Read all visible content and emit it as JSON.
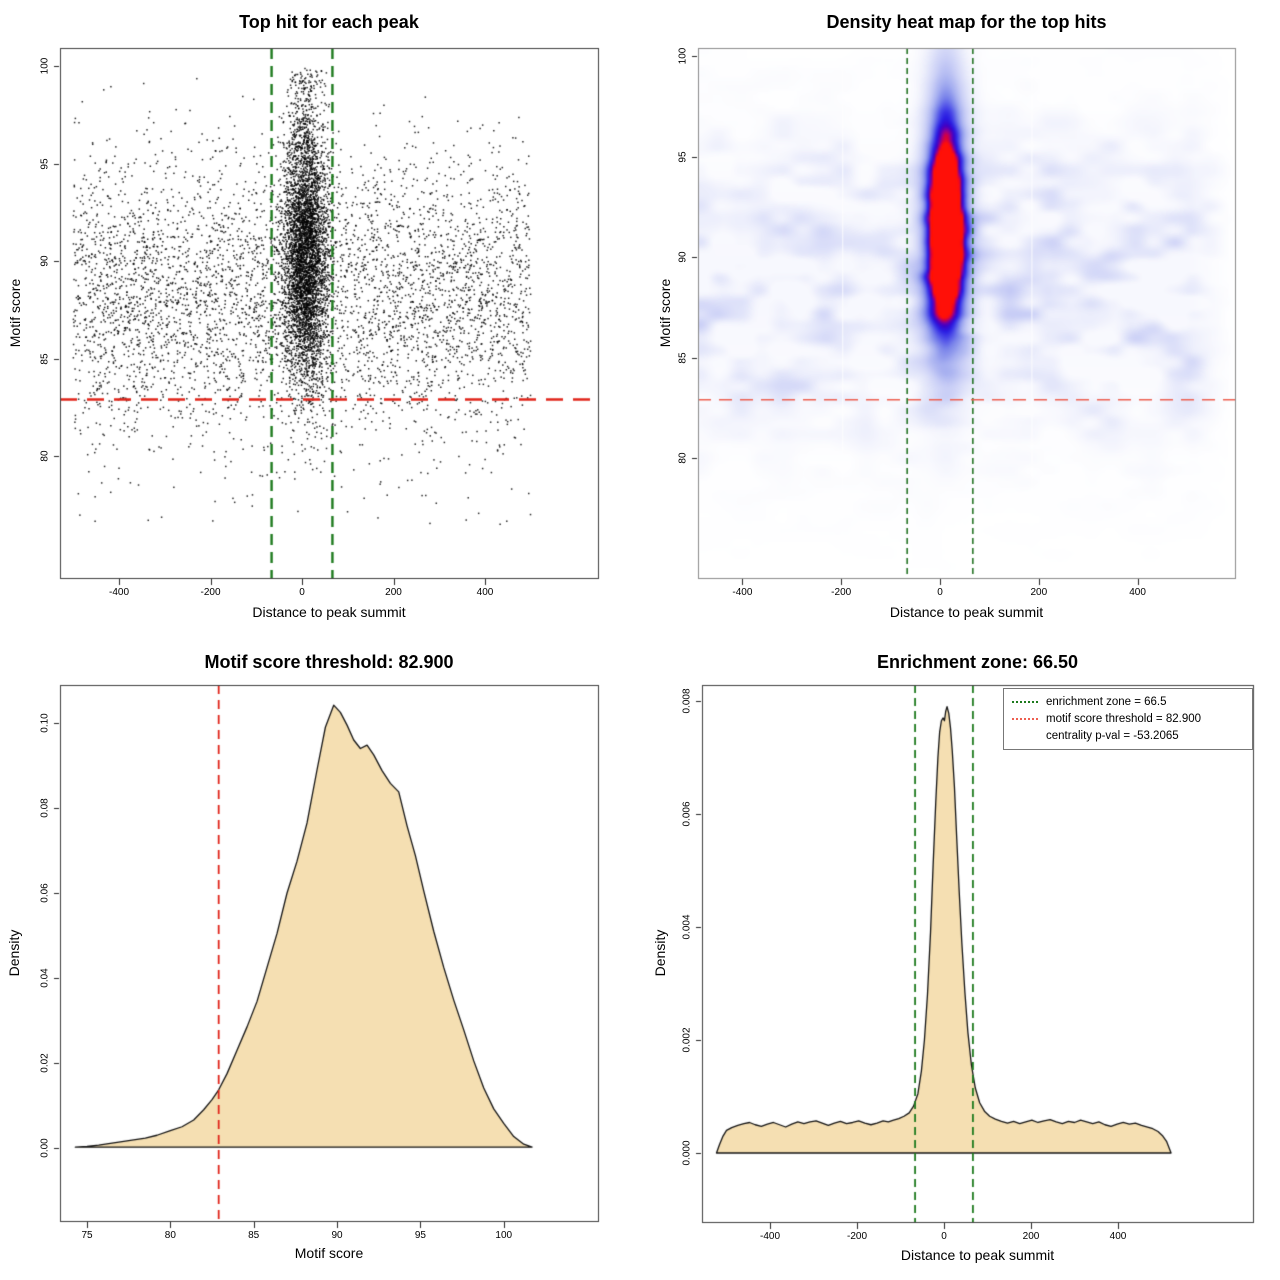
{
  "figure": {
    "background": "#ffffff"
  },
  "colors": {
    "enrichment_zone_green": "#1d7a1d",
    "heatmap_zone_green": "#166b16",
    "threshold_red": "#e0241a",
    "heatmap_threshold_salmon": "#ee5f50",
    "density_fill_wheat": "#f5dfb2",
    "curve_stroke": "#141414",
    "legend_dot_blue": "#1512e6",
    "scatter_point": "#000000",
    "heatmap_low": "#ffffff",
    "heatmap_mid": "#2a1ae2",
    "heatmap_high": "#ff1008"
  },
  "chart_data": [
    {
      "id": "top-hit-scatter",
      "type": "scatter",
      "title": "Top hit for each peak",
      "xlabel": "Distance to peak summit",
      "ylabel": "Motif score",
      "xlim": [
        -530,
        640
      ],
      "ylim": [
        74,
        101
      ],
      "x_tick_labels": [
        "-400",
        "-200",
        "0",
        "200",
        "400"
      ],
      "x_tick_values": [
        -400,
        -200,
        0,
        200,
        400
      ],
      "y_tick_labels": [
        "80",
        "85",
        "90",
        "95",
        "100"
      ],
      "y_tick_values": [
        80,
        85,
        90,
        95,
        100
      ],
      "grid": false,
      "enrichment_zone": [
        -66.5,
        66.5
      ],
      "motif_score_threshold": 82.9,
      "n_points_background": 4600,
      "n_points_cluster": 4300,
      "n_points_cluster_top_tail": 220,
      "n_points_low_tail": 60,
      "background_dist": {
        "x": "uniform(-500,500)",
        "y_mean": 88.3,
        "y_sd": 3.6,
        "y_clip": [
          76.3,
          99.6
        ]
      },
      "cluster_dist": {
        "x_mean": 8,
        "x_sd": 24,
        "x_clip": [
          -69,
          69
        ],
        "y_mean": 90.2,
        "y_sd": 3.35,
        "y_clip": [
          77.2,
          99.9
        ]
      }
    },
    {
      "id": "top-hit-density-heatmap",
      "type": "heatmap",
      "title": "Density heat map for the top hits",
      "xlabel": "Distance to peak summit",
      "ylabel": "Motif score",
      "xlim": [
        -490,
        600
      ],
      "ylim": [
        74,
        100.4
      ],
      "x_tick_labels": [
        "-400",
        "-200",
        "0",
        "200",
        "400"
      ],
      "x_tick_values": [
        -400,
        -200,
        0,
        200,
        400
      ],
      "y_tick_labels": [
        "80",
        "85",
        "90",
        "95",
        "100"
      ],
      "y_tick_values": [
        80,
        85,
        90,
        95,
        100
      ],
      "grid": false,
      "enrichment_zone": [
        -66.5,
        66.5
      ],
      "motif_score_threshold": 82.9,
      "hotspot": {
        "x_center": 12,
        "x_sd": 29,
        "y_center": 91,
        "y_sd": 3.8,
        "amplitude": 1.45,
        "top_tail": {
          "x_sd": 26,
          "y_center": 95.5,
          "y_sd": 4.5,
          "amplitude": 0.3
        }
      },
      "background_band": {
        "y_center": 88.6,
        "y_sd": 4.8,
        "amplitude": 0.36
      },
      "white_stripes_x": [
        -197,
        186
      ],
      "colormap": [
        "#ffffff",
        "#e3e6fa",
        "#a7b0f0",
        "#4a4ae8",
        "#2a1ae2",
        "#8c0096",
        "#ff1008"
      ]
    },
    {
      "id": "motif-score-density",
      "type": "area",
      "title": "Motif score threshold: 82.900",
      "xlabel": "Motif score",
      "ylabel": "Density",
      "xlim": [
        73.4,
        103.1
      ],
      "ylim": [
        -0.017,
        0.109
      ],
      "x_tick_labels": [
        "75",
        "80",
        "85",
        "90",
        "95",
        "100"
      ],
      "x_tick_values": [
        75,
        80,
        85,
        90,
        95,
        100
      ],
      "y_tick_labels": [
        "0.00",
        "0.02",
        "0.04",
        "0.06",
        "0.08",
        "0.10"
      ],
      "y_tick_values": [
        0,
        0.02,
        0.04,
        0.06,
        0.08,
        0.1
      ],
      "grid": false,
      "threshold": 82.9,
      "curve": [
        [
          74.3,
          0.0002
        ],
        [
          75,
          0.0004
        ],
        [
          75.7,
          0.0007
        ],
        [
          76.4,
          0.0011
        ],
        [
          77.1,
          0.0015
        ],
        [
          77.8,
          0.0019
        ],
        [
          78.5,
          0.0023
        ],
        [
          79.2,
          0.003
        ],
        [
          80,
          0.0041
        ],
        [
          80.7,
          0.005
        ],
        [
          81.4,
          0.0066
        ],
        [
          82,
          0.009
        ],
        [
          82.5,
          0.0114
        ],
        [
          82.9,
          0.0137
        ],
        [
          83.4,
          0.0175
        ],
        [
          84,
          0.023
        ],
        [
          84.6,
          0.0285
        ],
        [
          85.2,
          0.0345
        ],
        [
          85.8,
          0.0425
        ],
        [
          86.4,
          0.0505
        ],
        [
          87,
          0.06
        ],
        [
          87.6,
          0.0675
        ],
        [
          88.2,
          0.0765
        ],
        [
          88.8,
          0.089
        ],
        [
          89.3,
          0.099
        ],
        [
          89.8,
          0.1042
        ],
        [
          90.2,
          0.1025
        ],
        [
          90.6,
          0.0995
        ],
        [
          91,
          0.096
        ],
        [
          91.4,
          0.094
        ],
        [
          91.8,
          0.0948
        ],
        [
          92.2,
          0.0925
        ],
        [
          92.7,
          0.0888
        ],
        [
          93.2,
          0.0858
        ],
        [
          93.7,
          0.0838
        ],
        [
          94.2,
          0.0758
        ],
        [
          94.7,
          0.0688
        ],
        [
          95.2,
          0.0605
        ],
        [
          95.8,
          0.051
        ],
        [
          96.4,
          0.0425
        ],
        [
          97,
          0.0348
        ],
        [
          97.6,
          0.0278
        ],
        [
          98.2,
          0.0205
        ],
        [
          98.8,
          0.0141
        ],
        [
          99.4,
          0.0092
        ],
        [
          100,
          0.0058
        ],
        [
          100.6,
          0.0027
        ],
        [
          101.2,
          0.0009
        ],
        [
          101.7,
          0.0002
        ]
      ]
    },
    {
      "id": "summit-distance-density",
      "type": "area",
      "title": "Enrichment zone: 66.50",
      "xlabel": "Distance to peak summit",
      "ylabel": "Density",
      "xlim": [
        -556,
        710
      ],
      "ylim": [
        -0.0008,
        0.0083
      ],
      "x_tick_labels": [
        "-400",
        "-200",
        "0",
        "200",
        "400"
      ],
      "x_tick_values": [
        -400,
        -200,
        0,
        200,
        400
      ],
      "y_tick_labels": [
        "0.000",
        "0.002",
        "0.004",
        "0.006",
        "0.008"
      ],
      "y_tick_values": [
        0,
        0.002,
        0.004,
        0.006,
        0.008
      ],
      "grid": false,
      "enrichment_zone": [
        -66.5,
        66.5
      ],
      "legend": {
        "position": "topright",
        "items": [
          {
            "label": "enrichment zone = 66.5",
            "style": "dotted-line",
            "color": "#1d7a1d"
          },
          {
            "label": "motif score threshold = 82.900",
            "style": "dotted-line",
            "color": "#ee5f50"
          },
          {
            "label": "centrality p-val = -53.2065",
            "style": "dot",
            "color": "#1512e6"
          }
        ]
      },
      "curve": [
        [
          -523,
          0
        ],
        [
          -516,
          0.00015
        ],
        [
          -508,
          0.0003
        ],
        [
          -500,
          0.0004
        ],
        [
          -488,
          0.00045
        ],
        [
          -474,
          0.00049
        ],
        [
          -460,
          0.00052
        ],
        [
          -447,
          0.00054
        ],
        [
          -434,
          0.0005
        ],
        [
          -420,
          0.00047
        ],
        [
          -406,
          0.00051
        ],
        [
          -392,
          0.00054
        ],
        [
          -378,
          0.0005
        ],
        [
          -364,
          0.00046
        ],
        [
          -350,
          0.00051
        ],
        [
          -336,
          0.00055
        ],
        [
          -322,
          0.00052
        ],
        [
          -308,
          0.00055
        ],
        [
          -294,
          0.00057
        ],
        [
          -280,
          0.00053
        ],
        [
          -266,
          0.00049
        ],
        [
          -252,
          0.00053
        ],
        [
          -238,
          0.00056
        ],
        [
          -224,
          0.00052
        ],
        [
          -210,
          0.00054
        ],
        [
          -196,
          0.00057
        ],
        [
          -182,
          0.00053
        ],
        [
          -168,
          0.0005
        ],
        [
          -154,
          0.00053
        ],
        [
          -140,
          0.00057
        ],
        [
          -128,
          0.00055
        ],
        [
          -116,
          0.00058
        ],
        [
          -104,
          0.00061
        ],
        [
          -92,
          0.00065
        ],
        [
          -80,
          0.00071
        ],
        [
          -70,
          0.00083
        ],
        [
          -60,
          0.00105
        ],
        [
          -52,
          0.00145
        ],
        [
          -45,
          0.002
        ],
        [
          -38,
          0.0028
        ],
        [
          -31,
          0.0039
        ],
        [
          -25,
          0.0051
        ],
        [
          -19,
          0.0062
        ],
        [
          -14,
          0.007
        ],
        [
          -10,
          0.00745
        ],
        [
          -6,
          0.00765
        ],
        [
          -2,
          0.0077
        ],
        [
          1,
          0.00765
        ],
        [
          4,
          0.00782
        ],
        [
          7,
          0.0079
        ],
        [
          11,
          0.00778
        ],
        [
          15,
          0.00752
        ],
        [
          19,
          0.00712
        ],
        [
          24,
          0.00648
        ],
        [
          29,
          0.00562
        ],
        [
          35,
          0.00462
        ],
        [
          41,
          0.00372
        ],
        [
          48,
          0.00285
        ],
        [
          55,
          0.00213
        ],
        [
          63,
          0.00156
        ],
        [
          72,
          0.00115
        ],
        [
          82,
          0.00089
        ],
        [
          93,
          0.00074
        ],
        [
          105,
          0.00065
        ],
        [
          118,
          0.0006
        ],
        [
          132,
          0.00056
        ],
        [
          146,
          0.00053
        ],
        [
          160,
          0.00056
        ],
        [
          174,
          0.00052
        ],
        [
          188,
          0.00055
        ],
        [
          202,
          0.00058
        ],
        [
          216,
          0.00054
        ],
        [
          230,
          0.00057
        ],
        [
          244,
          0.00059
        ],
        [
          258,
          0.00055
        ],
        [
          272,
          0.00052
        ],
        [
          286,
          0.00056
        ],
        [
          300,
          0.00054
        ],
        [
          314,
          0.00058
        ],
        [
          328,
          0.00055
        ],
        [
          342,
          0.00052
        ],
        [
          356,
          0.00055
        ],
        [
          370,
          0.0005
        ],
        [
          384,
          0.00047
        ],
        [
          398,
          0.00051
        ],
        [
          412,
          0.00054
        ],
        [
          426,
          0.00051
        ],
        [
          440,
          0.00053
        ],
        [
          454,
          0.00049
        ],
        [
          468,
          0.00046
        ],
        [
          480,
          0.00043
        ],
        [
          492,
          0.00038
        ],
        [
          503,
          0.0003
        ],
        [
          512,
          0.0002
        ],
        [
          522,
          0
        ]
      ]
    }
  ]
}
